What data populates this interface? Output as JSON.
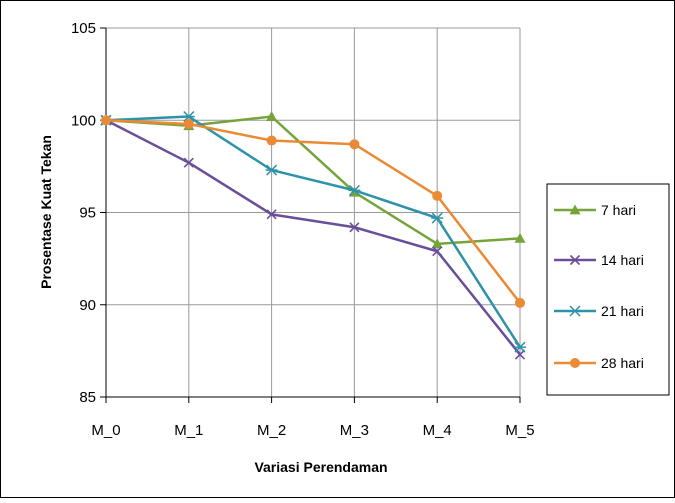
{
  "chart_data": {
    "type": "line",
    "title": "",
    "xlabel": "Variasi Perendaman",
    "ylabel": "Prosentase Kuat Tekan",
    "categories": [
      "M_0",
      "M_1",
      "M_2",
      "M_3",
      "M_4",
      "M_5"
    ],
    "ylim": [
      85,
      105
    ],
    "yticks": [
      "85",
      "90",
      "95",
      "100",
      "105"
    ],
    "grid": true,
    "legend_position": "right",
    "series": [
      {
        "name": "7 hari",
        "color": "#77a33b",
        "marker": "triangle",
        "values": [
          100,
          99.7,
          100.2,
          96.1,
          93.3,
          93.6
        ]
      },
      {
        "name": "14 hari",
        "color": "#6a4e9a",
        "marker": "x",
        "values": [
          100,
          97.7,
          94.9,
          94.2,
          92.9,
          87.3
        ]
      },
      {
        "name": "21 hari",
        "color": "#2e93a8",
        "marker": "star",
        "values": [
          100,
          100.2,
          97.3,
          96.2,
          94.7,
          87.7
        ]
      },
      {
        "name": "28 hari",
        "color": "#ea8a35",
        "marker": "circle",
        "values": [
          100,
          99.8,
          98.9,
          98.7,
          95.9,
          90.1
        ]
      }
    ]
  }
}
